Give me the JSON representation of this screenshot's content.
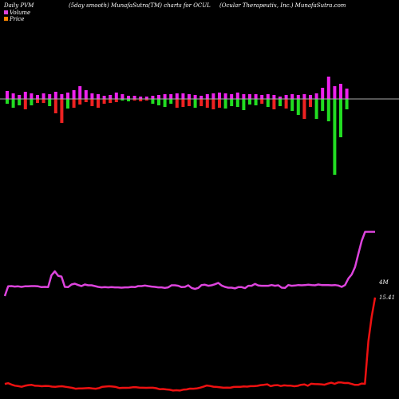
{
  "header": {
    "left": "Daily PVM",
    "middle": "(5day smooth) MunafaSutra(TM) charts for OCUL",
    "right": "(Ocular Therapeutix, Inc.) MunafaSutra.com"
  },
  "legend": [
    {
      "label": "Volume",
      "color": "#dd44dd"
    },
    {
      "label": "Price",
      "color": "#ff8800"
    }
  ],
  "colors": {
    "background": "#000000",
    "baseline": "#aaaaaa",
    "bar_up": "#ee22ee",
    "bar_green": "#22dd22",
    "bar_red": "#ee2222",
    "volume_line": "#dd44dd",
    "price_line": "#ee1111"
  },
  "chart_data": {
    "type": "bar+line",
    "top_bars": [
      10,
      7,
      5,
      9,
      7,
      5,
      7,
      6,
      9,
      6,
      8,
      11,
      16,
      11,
      7,
      6,
      4,
      5,
      8,
      6,
      4,
      4,
      3,
      3,
      4,
      5,
      6,
      6,
      7,
      7,
      6,
      5,
      4,
      6,
      7,
      8,
      7,
      6,
      8,
      6,
      6,
      6,
      5,
      6,
      5,
      3,
      5,
      6,
      5,
      6,
      5,
      7,
      14,
      28,
      16,
      19,
      13
    ],
    "bottom_bars": [
      -6,
      -11,
      -8,
      -13,
      -8,
      -5,
      -5,
      -9,
      -18,
      -30,
      -12,
      -11,
      -7,
      -4,
      -9,
      -11,
      -6,
      -5,
      -4,
      -2,
      -3,
      -2,
      -3,
      -2,
      -6,
      -8,
      -10,
      -6,
      -11,
      -10,
      -9,
      -11,
      -9,
      -11,
      -13,
      -11,
      -12,
      -9,
      -10,
      -14,
      -7,
      -8,
      -6,
      -10,
      -13,
      -9,
      -12,
      -15,
      -20,
      -25,
      -10,
      -25,
      -15,
      -28,
      -95,
      -48,
      -13
    ],
    "bottom_colors": [
      "g",
      "g",
      "g",
      "r",
      "g",
      "r",
      "r",
      "g",
      "r",
      "r",
      "g",
      "r",
      "r",
      "r",
      "r",
      "r",
      "r",
      "r",
      "r",
      "g",
      "g",
      "r",
      "r",
      "r",
      "g",
      "g",
      "g",
      "g",
      "r",
      "r",
      "r",
      "g",
      "r",
      "r",
      "r",
      "r",
      "g",
      "g",
      "g",
      "g",
      "g",
      "g",
      "r",
      "g",
      "r",
      "g",
      "r",
      "g",
      "g",
      "r",
      "r",
      "g",
      "g",
      "g",
      "g",
      "g",
      "g"
    ],
    "volume_line": [
      0.06,
      0.43,
      0.44,
      0.42,
      0.43,
      0.41,
      0.43,
      0.43,
      0.44,
      0.44,
      0.43,
      0.4,
      0.41,
      0.4,
      0.85,
      1.0,
      0.83,
      0.8,
      0.41,
      0.4,
      0.5,
      0.53,
      0.48,
      0.44,
      0.5,
      0.47,
      0.47,
      0.44,
      0.41,
      0.39,
      0.4,
      0.39,
      0.4,
      0.39,
      0.39,
      0.38,
      0.39,
      0.39,
      0.41,
      0.4,
      0.44,
      0.44,
      0.46,
      0.44,
      0.42,
      0.41,
      0.39,
      0.39,
      0.37,
      0.39,
      0.47,
      0.47,
      0.45,
      0.4,
      0.41,
      0.47,
      0.37,
      0.33,
      0.37,
      0.48,
      0.49,
      0.45,
      0.47,
      0.51,
      0.56,
      0.46,
      0.41,
      0.38,
      0.38,
      0.35,
      0.4,
      0.4,
      0.36,
      0.45,
      0.45,
      0.52,
      0.46,
      0.45,
      0.45,
      0.45,
      0.48,
      0.45,
      0.47,
      0.38,
      0.37,
      0.48,
      0.45,
      0.46,
      0.48,
      0.47,
      0.48,
      0.49,
      0.48,
      0.47,
      0.5,
      0.48,
      0.48,
      0.48,
      0.47,
      0.48,
      0.46,
      0.41,
      0.48,
      0.73,
      0.88,
      1.16,
      1.67,
      2.16,
      2.68,
      3.68,
      5.81,
      9.62
    ],
    "price_line": [
      15.41,
      12.84,
      9.45,
      3.68,
      3.72,
      3.54,
      3.54,
      3.66,
      3.8,
      3.79,
      3.86,
      3.86,
      3.68,
      3.83,
      3.71,
      3.56,
      3.61,
      3.63,
      3.64,
      3.69,
      3.42,
      3.6,
      3.55,
      3.4,
      3.35,
      3.43,
      3.43,
      3.47,
      3.38,
      3.5,
      3.47,
      3.36,
      3.61,
      3.55,
      3.5,
      3.41,
      3.36,
      3.36,
      3.3,
      3.32,
      3.27,
      3.26,
      3.25,
      3.15,
      3.16,
      3.15,
      3.2,
      3.25,
      3.29,
      3.38,
      3.45,
      3.29,
      3.16,
      3.05,
      3.01,
      3.03,
      2.92,
      2.88,
      2.77,
      2.81,
      2.77,
      2.87,
      2.92,
      2.97,
      2.95,
      3.08,
      3.15,
      3.14,
      3.13,
      3.15,
      3.16,
      3.21,
      3.21,
      3.15,
      3.13,
      3.13,
      3.11,
      3.25,
      3.31,
      3.35,
      3.31,
      3.27,
      3.1,
      3.01,
      3.05,
      3.1,
      3.08,
      3.05,
      3.05,
      3.02,
      3.13,
      3.21,
      3.28,
      3.35,
      3.32,
      3.28,
      3.3,
      3.38,
      3.39,
      3.35,
      3.41,
      3.42,
      3.53,
      3.5,
      3.42,
      3.27,
      3.36,
      3.43,
      3.58,
      3.76,
      3.66
    ],
    "annotations": [
      "4M",
      "15.41"
    ]
  }
}
